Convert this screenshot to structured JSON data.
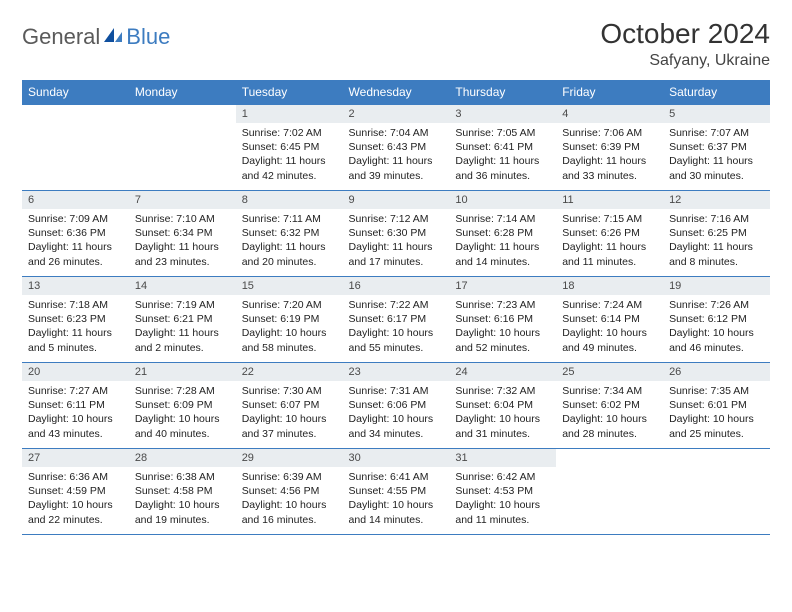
{
  "logo": {
    "part1": "General",
    "part2": "Blue"
  },
  "title": "October 2024",
  "location": "Safyany, Ukraine",
  "colors": {
    "header_bg": "#3d7cc0",
    "header_text": "#ffffff",
    "daynum_bg": "#e9edf0",
    "border": "#3d7cc0",
    "logo_gray": "#5a5a5a",
    "logo_blue": "#3d7cc0"
  },
  "weekdays": [
    "Sunday",
    "Monday",
    "Tuesday",
    "Wednesday",
    "Thursday",
    "Friday",
    "Saturday"
  ],
  "weeks": [
    [
      {
        "empty": true
      },
      {
        "empty": true
      },
      {
        "num": "1",
        "sunrise": "Sunrise: 7:02 AM",
        "sunset": "Sunset: 6:45 PM",
        "daylight": "Daylight: 11 hours and 42 minutes."
      },
      {
        "num": "2",
        "sunrise": "Sunrise: 7:04 AM",
        "sunset": "Sunset: 6:43 PM",
        "daylight": "Daylight: 11 hours and 39 minutes."
      },
      {
        "num": "3",
        "sunrise": "Sunrise: 7:05 AM",
        "sunset": "Sunset: 6:41 PM",
        "daylight": "Daylight: 11 hours and 36 minutes."
      },
      {
        "num": "4",
        "sunrise": "Sunrise: 7:06 AM",
        "sunset": "Sunset: 6:39 PM",
        "daylight": "Daylight: 11 hours and 33 minutes."
      },
      {
        "num": "5",
        "sunrise": "Sunrise: 7:07 AM",
        "sunset": "Sunset: 6:37 PM",
        "daylight": "Daylight: 11 hours and 30 minutes."
      }
    ],
    [
      {
        "num": "6",
        "sunrise": "Sunrise: 7:09 AM",
        "sunset": "Sunset: 6:36 PM",
        "daylight": "Daylight: 11 hours and 26 minutes."
      },
      {
        "num": "7",
        "sunrise": "Sunrise: 7:10 AM",
        "sunset": "Sunset: 6:34 PM",
        "daylight": "Daylight: 11 hours and 23 minutes."
      },
      {
        "num": "8",
        "sunrise": "Sunrise: 7:11 AM",
        "sunset": "Sunset: 6:32 PM",
        "daylight": "Daylight: 11 hours and 20 minutes."
      },
      {
        "num": "9",
        "sunrise": "Sunrise: 7:12 AM",
        "sunset": "Sunset: 6:30 PM",
        "daylight": "Daylight: 11 hours and 17 minutes."
      },
      {
        "num": "10",
        "sunrise": "Sunrise: 7:14 AM",
        "sunset": "Sunset: 6:28 PM",
        "daylight": "Daylight: 11 hours and 14 minutes."
      },
      {
        "num": "11",
        "sunrise": "Sunrise: 7:15 AM",
        "sunset": "Sunset: 6:26 PM",
        "daylight": "Daylight: 11 hours and 11 minutes."
      },
      {
        "num": "12",
        "sunrise": "Sunrise: 7:16 AM",
        "sunset": "Sunset: 6:25 PM",
        "daylight": "Daylight: 11 hours and 8 minutes."
      }
    ],
    [
      {
        "num": "13",
        "sunrise": "Sunrise: 7:18 AM",
        "sunset": "Sunset: 6:23 PM",
        "daylight": "Daylight: 11 hours and 5 minutes."
      },
      {
        "num": "14",
        "sunrise": "Sunrise: 7:19 AM",
        "sunset": "Sunset: 6:21 PM",
        "daylight": "Daylight: 11 hours and 2 minutes."
      },
      {
        "num": "15",
        "sunrise": "Sunrise: 7:20 AM",
        "sunset": "Sunset: 6:19 PM",
        "daylight": "Daylight: 10 hours and 58 minutes."
      },
      {
        "num": "16",
        "sunrise": "Sunrise: 7:22 AM",
        "sunset": "Sunset: 6:17 PM",
        "daylight": "Daylight: 10 hours and 55 minutes."
      },
      {
        "num": "17",
        "sunrise": "Sunrise: 7:23 AM",
        "sunset": "Sunset: 6:16 PM",
        "daylight": "Daylight: 10 hours and 52 minutes."
      },
      {
        "num": "18",
        "sunrise": "Sunrise: 7:24 AM",
        "sunset": "Sunset: 6:14 PM",
        "daylight": "Daylight: 10 hours and 49 minutes."
      },
      {
        "num": "19",
        "sunrise": "Sunrise: 7:26 AM",
        "sunset": "Sunset: 6:12 PM",
        "daylight": "Daylight: 10 hours and 46 minutes."
      }
    ],
    [
      {
        "num": "20",
        "sunrise": "Sunrise: 7:27 AM",
        "sunset": "Sunset: 6:11 PM",
        "daylight": "Daylight: 10 hours and 43 minutes."
      },
      {
        "num": "21",
        "sunrise": "Sunrise: 7:28 AM",
        "sunset": "Sunset: 6:09 PM",
        "daylight": "Daylight: 10 hours and 40 minutes."
      },
      {
        "num": "22",
        "sunrise": "Sunrise: 7:30 AM",
        "sunset": "Sunset: 6:07 PM",
        "daylight": "Daylight: 10 hours and 37 minutes."
      },
      {
        "num": "23",
        "sunrise": "Sunrise: 7:31 AM",
        "sunset": "Sunset: 6:06 PM",
        "daylight": "Daylight: 10 hours and 34 minutes."
      },
      {
        "num": "24",
        "sunrise": "Sunrise: 7:32 AM",
        "sunset": "Sunset: 6:04 PM",
        "daylight": "Daylight: 10 hours and 31 minutes."
      },
      {
        "num": "25",
        "sunrise": "Sunrise: 7:34 AM",
        "sunset": "Sunset: 6:02 PM",
        "daylight": "Daylight: 10 hours and 28 minutes."
      },
      {
        "num": "26",
        "sunrise": "Sunrise: 7:35 AM",
        "sunset": "Sunset: 6:01 PM",
        "daylight": "Daylight: 10 hours and 25 minutes."
      }
    ],
    [
      {
        "num": "27",
        "sunrise": "Sunrise: 6:36 AM",
        "sunset": "Sunset: 4:59 PM",
        "daylight": "Daylight: 10 hours and 22 minutes."
      },
      {
        "num": "28",
        "sunrise": "Sunrise: 6:38 AM",
        "sunset": "Sunset: 4:58 PM",
        "daylight": "Daylight: 10 hours and 19 minutes."
      },
      {
        "num": "29",
        "sunrise": "Sunrise: 6:39 AM",
        "sunset": "Sunset: 4:56 PM",
        "daylight": "Daylight: 10 hours and 16 minutes."
      },
      {
        "num": "30",
        "sunrise": "Sunrise: 6:41 AM",
        "sunset": "Sunset: 4:55 PM",
        "daylight": "Daylight: 10 hours and 14 minutes."
      },
      {
        "num": "31",
        "sunrise": "Sunrise: 6:42 AM",
        "sunset": "Sunset: 4:53 PM",
        "daylight": "Daylight: 10 hours and 11 minutes."
      },
      {
        "empty": true
      },
      {
        "empty": true
      }
    ]
  ]
}
